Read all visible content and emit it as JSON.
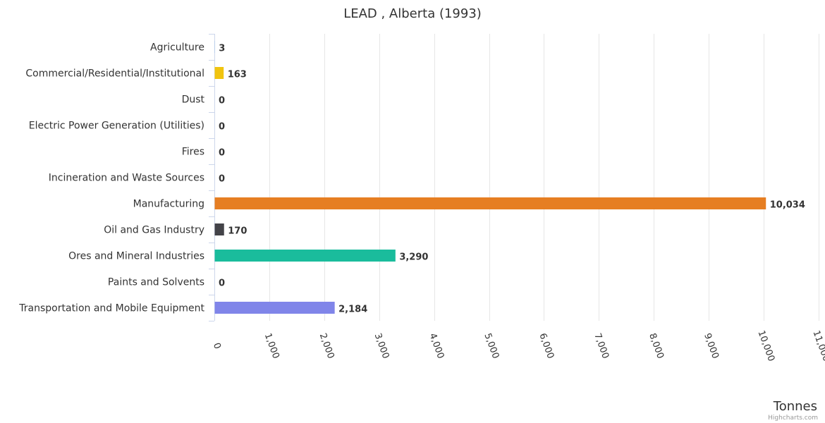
{
  "chart_data": {
    "type": "bar",
    "orientation": "horizontal",
    "title": "LEAD , Alberta (1993)",
    "xlabel": "",
    "ylabel": "Tonnes",
    "xlim": [
      0,
      11000
    ],
    "tick_values": [
      0,
      1000,
      2000,
      3000,
      4000,
      5000,
      6000,
      7000,
      8000,
      9000,
      10000,
      11000
    ],
    "tick_labels": [
      "0",
      "1,000",
      "2,000",
      "3,000",
      "4,000",
      "5,000",
      "6,000",
      "7,000",
      "8,000",
      "9,000",
      "10,000",
      "11,000"
    ],
    "grid": true,
    "categories": [
      "Agriculture",
      "Commercial/Residential/Institutional",
      "Dust",
      "Electric Power Generation (Utilities)",
      "Fires",
      "Incineration and Waste Sources",
      "Manufacturing",
      "Oil and Gas Industry",
      "Ores and Mineral Industries",
      "Paints and Solvents",
      "Transportation and Mobile Equipment"
    ],
    "values": [
      3,
      163,
      0,
      0,
      0,
      0,
      10034,
      170,
      3290,
      0,
      2184
    ],
    "value_labels": [
      "3",
      "163",
      "0",
      "0",
      "0",
      "0",
      "10,034",
      "170",
      "3,290",
      "0",
      "2,184"
    ],
    "colors": [
      "#7cb5ec",
      "#f1c40f",
      "#2c3e50",
      "#8e44ad",
      "#e74c3c",
      "#16a085",
      "#e67e22",
      "#434348",
      "#1abc9c",
      "#2980b9",
      "#8085e9"
    ]
  },
  "credits": "Highcharts.com"
}
